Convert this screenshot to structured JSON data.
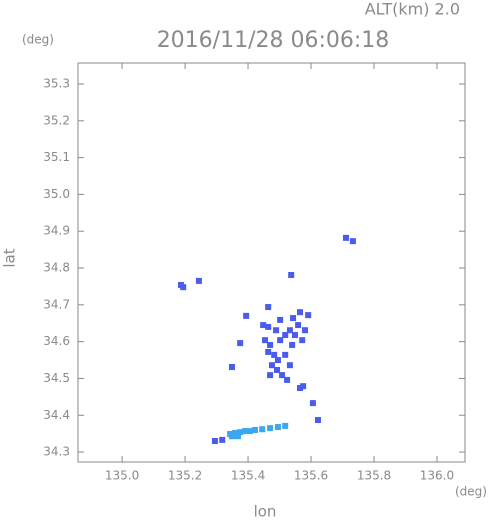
{
  "chart_data": {
    "type": "scatter",
    "title": "2016/11/28 06:06:18",
    "subtitle": "ALT(km) 2.0",
    "y_unit": "(deg)",
    "x_unit": "(deg)",
    "xlabel": "lon",
    "ylabel": "lat",
    "xlim": [
      134.86,
      136.089
    ],
    "ylim": [
      34.273,
      35.357
    ],
    "xticks": [
      {
        "value": 135,
        "label": "135.0"
      },
      135.2,
      135.4,
      135.6,
      135.8,
      {
        "value": 136,
        "label": "136.0"
      }
    ],
    "yticks": [
      34.3,
      34.4,
      34.5,
      34.6,
      34.7,
      34.8,
      34.9,
      {
        "value": 35,
        "label": "35.0"
      },
      35.1,
      35.2,
      35.3
    ],
    "grid": false,
    "series": [
      {
        "color": "#4a5cf0",
        "x": [
          135.187,
          135.194,
          135.244,
          135.711,
          135.733,
          135.537,
          135.464,
          135.394,
          135.448,
          135.464,
          135.454,
          135.47,
          135.489,
          135.502,
          135.518,
          135.533,
          135.54,
          135.549,
          135.559,
          135.572,
          135.581,
          135.591,
          135.565,
          135.543,
          135.502,
          135.483,
          135.495,
          135.518,
          135.492,
          135.508,
          135.524,
          135.47,
          135.476,
          135.533,
          135.565,
          135.575,
          135.606,
          135.375,
          135.349,
          135.622,
          135.464,
          135.295,
          135.318
        ],
        "y": [
          34.754,
          34.748,
          34.765,
          34.882,
          34.873,
          34.781,
          34.694,
          34.67,
          34.645,
          34.64,
          34.604,
          34.591,
          34.631,
          34.604,
          34.618,
          34.631,
          34.591,
          34.618,
          34.645,
          34.604,
          34.631,
          34.672,
          34.68,
          34.664,
          34.659,
          34.564,
          34.55,
          34.564,
          34.523,
          34.509,
          34.496,
          34.509,
          34.536,
          34.536,
          34.474,
          34.479,
          34.433,
          34.596,
          34.531,
          34.387,
          34.572,
          34.33,
          34.333
        ]
      },
      {
        "color": "#3aa8ee",
        "x": [
          135.343,
          135.359,
          135.375,
          135.391,
          135.406,
          135.422,
          135.445,
          135.47,
          135.495,
          135.518,
          135.349,
          135.368
        ],
        "y": [
          34.349,
          34.352,
          34.354,
          34.357,
          34.357,
          34.36,
          34.362,
          34.365,
          34.368,
          34.371,
          34.343,
          34.343
        ]
      }
    ]
  }
}
